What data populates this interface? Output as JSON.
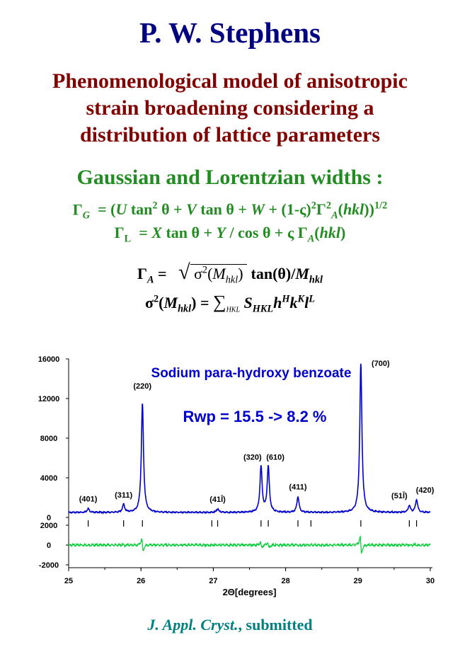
{
  "author": "P. W. Stephens",
  "title_lines": [
    "Phenomenological model of anisotropic",
    "strain broadening considering a",
    "distribution of lattice parameters"
  ],
  "widths_heading": "Gaussian and Lorentzian widths :",
  "equations": {
    "gauss": {
      "lhs_symbol": "Γ",
      "lhs_sub": "G",
      "rest": "= (U tan² θ + V tan θ + W + (1-ς)²Γ²A(hkl))1/2"
    },
    "lorentz": {
      "lhs_symbol": "Γ",
      "lhs_sub": "L",
      "rest": "= X tan θ + Y / cos θ + ς ΓA(hkl)"
    },
    "gamma_a": {
      "lhs": "ΓA =",
      "inner": "σ2(Mhkl)",
      "rest": "tan(θ)/Mhkl"
    },
    "sigma": {
      "lhs": "σ2(Mhkl) =",
      "sum_under": "HKL",
      "term": "SHKLhHkKlL"
    }
  },
  "chart_data": {
    "type": "line",
    "title": "Sodium para-hydroxy benzoate",
    "annotation": "Rwp = 15.5 -> 8.2 %",
    "xlabel": "2Θ[degrees]",
    "ylabel": "",
    "xlim": [
      25,
      30
    ],
    "ylim": [
      0,
      16000
    ],
    "diff_ylim": [
      -2000,
      2000
    ],
    "x_ticks": [
      "25",
      "26",
      "27",
      "28",
      "29",
      "30"
    ],
    "y_ticks": [
      "0",
      "4000",
      "8000",
      "12000",
      "16000"
    ],
    "diff_ticks": [
      "-2000",
      "0",
      "2000"
    ],
    "baseline": 500,
    "peaks": [
      {
        "x": 25.27,
        "height": 400,
        "label": "(401)"
      },
      {
        "x": 25.76,
        "height": 800,
        "label": "(311)"
      },
      {
        "x": 26.02,
        "height": 11000,
        "label": "(220)"
      },
      {
        "x": 27.06,
        "height": 350,
        "label": "(41Ī)"
      },
      {
        "x": 27.66,
        "height": 4600,
        "label": "(320)"
      },
      {
        "x": 27.76,
        "height": 4600,
        "label": "(610)"
      },
      {
        "x": 28.17,
        "height": 1600,
        "label": "(411)"
      },
      {
        "x": 29.04,
        "height": 15000,
        "label": "(700)"
      },
      {
        "x": 29.71,
        "height": 700,
        "label": "(51Ī)"
      },
      {
        "x": 29.81,
        "height": 1300,
        "label": "(420)"
      }
    ],
    "reflection_ticks": [
      25.27,
      25.76,
      26.02,
      26.98,
      27.06,
      27.66,
      27.76,
      28.17,
      28.35,
      29.04,
      29.71,
      29.81
    ],
    "colors": {
      "observed": "#0000cc",
      "difference": "#00cc33",
      "title": "#0000cc",
      "annotation": "#0000cc"
    }
  },
  "citation": {
    "journal": "J. Appl. Cryst.",
    "status": ", submitted"
  }
}
